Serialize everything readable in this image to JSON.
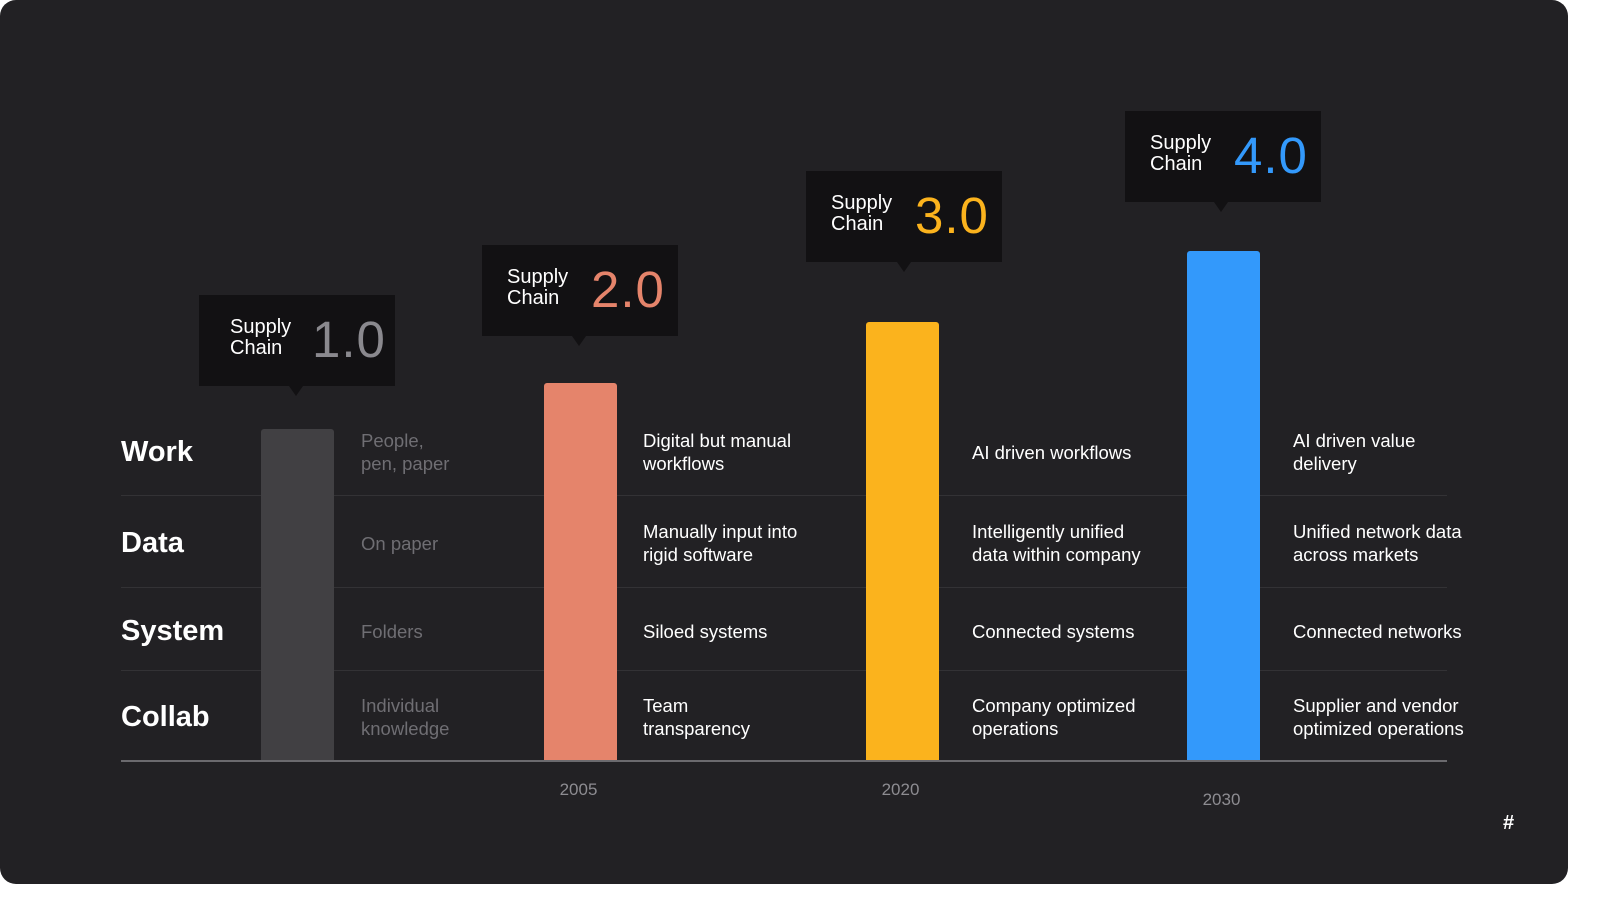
{
  "chart_data": {
    "type": "bar",
    "title": "",
    "rows": [
      "Work",
      "Data",
      "System",
      "Collab"
    ],
    "x": [
      "",
      "2005",
      "2020",
      "2030"
    ],
    "series": [
      {
        "name": "Supply Chain 1.0",
        "label_text": "Supply\nChain",
        "value_text": "1.0",
        "year": "",
        "relative_height": 0.65,
        "color": "#414043",
        "value_color": "#8a898e",
        "dimmed": true,
        "cells": [
          "People,\npen, paper",
          "On paper",
          "Folders",
          "Individual\nknowledge"
        ]
      },
      {
        "name": "Supply Chain 2.0",
        "label_text": "Supply\nChain",
        "value_text": "2.0",
        "year": "2005",
        "relative_height": 0.74,
        "color": "#e5846b",
        "value_color": "#e5846b",
        "dimmed": false,
        "cells": [
          "Digital but manual\nworkflows",
          "Manually input  into\nrigid software",
          "Siloed systems",
          "Team\ntransparency"
        ]
      },
      {
        "name": "Supply Chain 3.0",
        "label_text": "Supply\nChain",
        "value_text": "3.0",
        "year": "2020",
        "relative_height": 0.86,
        "color": "#fbb31d",
        "value_color": "#fbb31d",
        "dimmed": false,
        "cells": [
          "AI driven workflows",
          "Intelligently unified\ndata within company",
          "Connected systems",
          "Company  optimized\noperations"
        ]
      },
      {
        "name": "Supply Chain 4.0",
        "label_text": "Supply\nChain",
        "value_text": "4.0",
        "year": "2030",
        "relative_height": 1.0,
        "color": "#3399fb",
        "value_color": "#3399fb",
        "dimmed": false,
        "cells": [
          "AI driven value\ndelivery",
          "Unified network data\nacross markets",
          "Connected networks",
          "Supplier and vendor\noptimized operations"
        ]
      }
    ],
    "grid": false,
    "legend": "none"
  },
  "footer": {
    "mark": "#"
  },
  "colors": {
    "background": "#222124",
    "tooltip": "#121113",
    "text": "#ffffff",
    "dim_text": "#6f6e73"
  }
}
